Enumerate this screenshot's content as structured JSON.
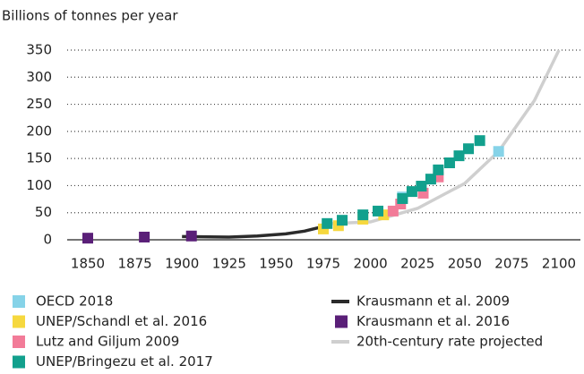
{
  "chart_data": {
    "type": "scatter",
    "y_label": "Billions of tonnes per year",
    "xlim": [
      1850,
      2100
    ],
    "ylim": [
      0,
      350
    ],
    "xticks": [
      1850,
      1875,
      1900,
      1925,
      1950,
      1975,
      2000,
      2025,
      2050,
      2075,
      2100
    ],
    "yticks": [
      0,
      50,
      100,
      150,
      200,
      250,
      300,
      350
    ],
    "grid": true,
    "series": [
      {
        "name": "OECD 2018",
        "color": "#86d3e8",
        "style": "square",
        "x": [
          2017,
          2068
        ],
        "values": [
          79,
          163
        ]
      },
      {
        "name": "UNEP/Schandl et al. 2016",
        "color": "#f6d83e",
        "style": "square",
        "x": [
          1975,
          1983,
          1996,
          2007
        ],
        "values": [
          20,
          26,
          38,
          46
        ]
      },
      {
        "name": "Lutz and Giljum 2009",
        "color": "#f27b98",
        "style": "square",
        "x": [
          2012,
          2016,
          2028,
          2036
        ],
        "values": [
          53,
          66,
          86,
          116
        ]
      },
      {
        "name": "UNEP/Bringezu et al. 2017",
        "color": "#12a08d",
        "style": "square",
        "x": [
          1977,
          1985,
          1996,
          2004,
          2017,
          2022,
          2027,
          2032,
          2036,
          2042,
          2047,
          2052,
          2058
        ],
        "values": [
          30,
          36,
          46,
          53,
          76,
          89,
          99,
          112,
          129,
          142,
          155,
          168,
          183
        ]
      },
      {
        "name": "Krausmann et al. 2009",
        "color": "#2b2b2b",
        "style": "line",
        "x": [
          1900,
          1925,
          1940,
          1955,
          1965,
          1972,
          1979
        ],
        "values": [
          6,
          5,
          7,
          11,
          16,
          22,
          30
        ]
      },
      {
        "name": "Krausmann et al. 2016",
        "color": "#5a1f78",
        "style": "square",
        "x": [
          1850,
          1880,
          1905
        ],
        "values": [
          3,
          5,
          7
        ]
      },
      {
        "name": "20th-century rate projected",
        "color": "#cfcfcf",
        "style": "line",
        "x": [
          1979,
          2000,
          2025,
          2050,
          2068,
          2087,
          2100
        ],
        "values": [
          30,
          33,
          58,
          104,
          163,
          257,
          350
        ]
      }
    ]
  }
}
